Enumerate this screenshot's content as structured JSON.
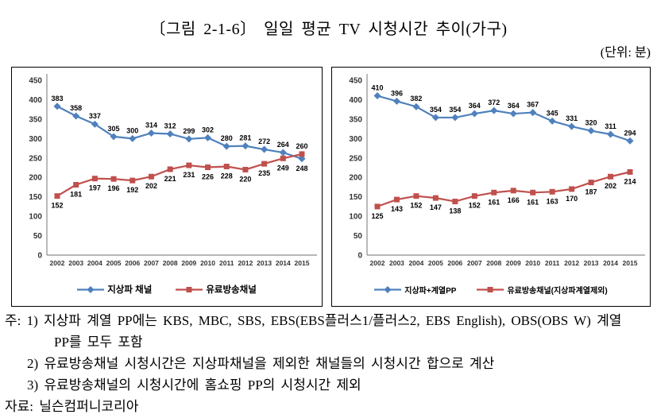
{
  "page": {
    "title": "〔그림 2-1-6〕  일일 평균 TV 시청시간 추이(가구)",
    "unit_label": "(단위: 분)",
    "notes": {
      "line1": "주: 1) 지상파 계열 PP에는 KBS, MBC, SBS, EBS(EBS플러스1/플러스2, EBS English), OBS(OBS W) 계열",
      "line2": "PP를 모두 포함",
      "line3": "2) 유료방송채널 시청시간은 지상파채널을 제외한 채널들의 시청시간 합으로 계산",
      "line4": "3) 유료방송채널의 시청시간에 홈쇼핑 PP의 시청시간 제외",
      "source": "자료: 닐슨컴퍼니코리아"
    }
  },
  "colors": {
    "terrestrial_blue": "#4f81bd",
    "pay_tv_red": "#c0504d",
    "axis_gray": "#8c8c8c"
  },
  "chart_data": [
    {
      "id": "left",
      "type": "line",
      "title": "",
      "categories": [
        "2002",
        "2003",
        "2004",
        "2005",
        "2006",
        "2007",
        "2008",
        "2009",
        "2010",
        "2011",
        "2012",
        "2013",
        "2014",
        "2015"
      ],
      "series": [
        {
          "name": "지상파 채널",
          "color": "#4f81bd",
          "marker": "diamond",
          "values": [
            383,
            358,
            337,
            305,
            300,
            314,
            312,
            299,
            302,
            280,
            281,
            272,
            264,
            248
          ]
        },
        {
          "name": "유료방송채널",
          "color": "#c0504d",
          "marker": "square",
          "values": [
            152,
            181,
            197,
            196,
            192,
            202,
            221,
            231,
            226,
            228,
            220,
            235,
            249,
            260
          ]
        }
      ],
      "ylim": [
        0,
        450
      ],
      "ytick_step": 50,
      "grid": false,
      "legend_position": "bottom",
      "data_labels": true
    },
    {
      "id": "right",
      "type": "line",
      "title": "",
      "categories": [
        "2002",
        "2003",
        "2004",
        "2005",
        "2006",
        "2007",
        "2008",
        "2009",
        "2010",
        "2011",
        "2012",
        "2013",
        "2014",
        "2015"
      ],
      "series": [
        {
          "name": "지상파+계열PP",
          "color": "#4f81bd",
          "marker": "diamond",
          "values": [
            410,
            396,
            382,
            354,
            354,
            364,
            372,
            364,
            367,
            345,
            331,
            320,
            311,
            294
          ]
        },
        {
          "name": "유료방송채널(지상파계열제외)",
          "color": "#c0504d",
          "marker": "square",
          "values": [
            125,
            143,
            152,
            147,
            138,
            152,
            161,
            166,
            161,
            163,
            170,
            187,
            202,
            214
          ]
        }
      ],
      "ylim": [
        0,
        450
      ],
      "ytick_step": 50,
      "grid": false,
      "legend_position": "bottom",
      "data_labels": true
    }
  ]
}
